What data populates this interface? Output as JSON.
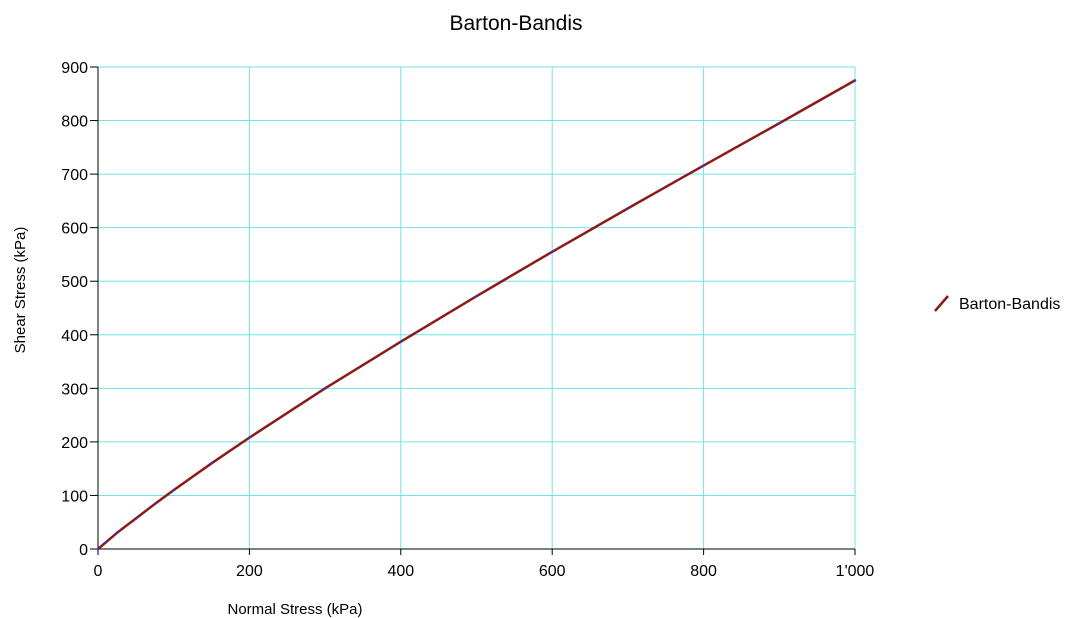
{
  "chart_data": {
    "type": "line",
    "title": "Barton-Bandis",
    "xlabel": "Normal Stress (kPa)",
    "ylabel": "Shear Stress (kPa)",
    "xlim": [
      0,
      1000
    ],
    "ylim": [
      0,
      900
    ],
    "xticks": [
      0,
      200,
      400,
      600,
      800,
      1000
    ],
    "xtick_labels": [
      "0",
      "200",
      "400",
      "600",
      "800",
      "1'000"
    ],
    "yticks": [
      0,
      100,
      200,
      300,
      400,
      500,
      600,
      700,
      800,
      900
    ],
    "ytick_labels": [
      "0",
      "100",
      "200",
      "300",
      "400",
      "500",
      "600",
      "700",
      "800",
      "900"
    ],
    "grid": true,
    "legend": "right",
    "colors": {
      "series": "#8b1a1a",
      "grid": "#6fe3ee",
      "axis": "#000000",
      "marker": "#3b2fd6"
    },
    "series": [
      {
        "name": "Barton-Bandis",
        "x": [
          0,
          10,
          25,
          50,
          75,
          100,
          150,
          200,
          300,
          400,
          500,
          600,
          700,
          800,
          900,
          1000
        ],
        "y": [
          0,
          12,
          30,
          57,
          84,
          110,
          160,
          208,
          300,
          387,
          472,
          555,
          636,
          716,
          795,
          875
        ]
      }
    ]
  }
}
